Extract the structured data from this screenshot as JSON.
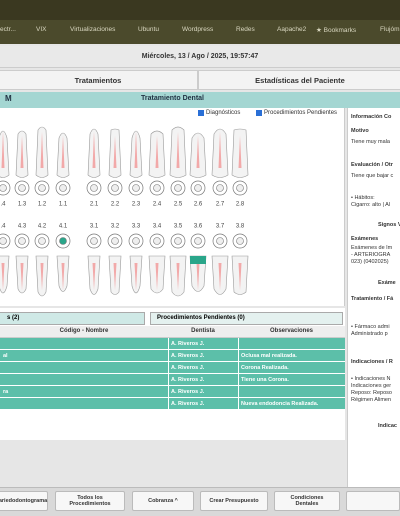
{
  "bookmarks": [
    "ectr...",
    "VIX",
    "Virtualizaciones",
    "Ubuntu",
    "Wordpress",
    "Redes",
    "Aapache2",
    "★ Bookmarks",
    "Flujóm"
  ],
  "date": "Miércoles, 13 / Ago / 2025, 19:57:47",
  "tabs": [
    "Tratamientos",
    "Estadísticas del Paciente"
  ],
  "header": {
    "left": "M",
    "title": "Tratamiento Dental"
  },
  "checks": [
    "Diagnósticos",
    "Procedimientos Pendientes"
  ],
  "upper_numbers": [
    ".4",
    "1.3",
    "1.2",
    "1.1",
    "2.1",
    "2.2",
    "2.3",
    "2.4",
    "2.5",
    "2.6",
    "2.7",
    "2.8"
  ],
  "lower_numbers": [
    ".4",
    "4.3",
    "4.2",
    "4.1",
    "3.1",
    "3.2",
    "3.3",
    "3.4",
    "3.5",
    "3.6",
    "3.7",
    "3.8"
  ],
  "side": [
    "Información Co",
    "Motivo",
    "Tiene muy mala",
    "Evaluación / Otr",
    "Tiene que bajar c",
    "• Hábitos:",
    "Cigarro: alto | Al",
    "Signos V",
    "Exámenes",
    "Exámenes de Im",
    "- ARTERIOGRA",
    "023) (0402025)",
    "Exáme",
    "Tratamiento / Fá",
    "• Fármaco admi",
    "Administrado p",
    "Indicaciones / R",
    "• Indicaciones N",
    "Indicaciones ger",
    "Reposo: Reposo",
    "Régimen Alimen",
    "Indicac"
  ],
  "table": {
    "tabs": [
      "s (2)",
      "Procedimientos Pendientes (0)"
    ],
    "columns": [
      "Código - Nombre",
      "Dentista",
      "Observaciones"
    ],
    "rows": [
      {
        "dentist": "A. Riveros J."
      },
      {
        "code": "al",
        "dentist": "A. Riveros J.",
        "obs": "Oclusa mal realizada."
      },
      {
        "dentist": "A. Riveros J.",
        "obs": "Corona Realizada."
      },
      {
        "dentist": "A. Riveros J.",
        "obs": "Tiene una Corona."
      },
      {
        "code": "ra",
        "dentist": "A. Riveros J."
      },
      {
        "dentist": "A. Riveros J.",
        "obs": "Nueva endodoncia Realizada."
      }
    ]
  },
  "buttons": [
    "ariedodontograma",
    "Todos los Procedimientos",
    "Cobranza ^",
    "Crear Presupuesto",
    "Condiciones Dentales"
  ]
}
